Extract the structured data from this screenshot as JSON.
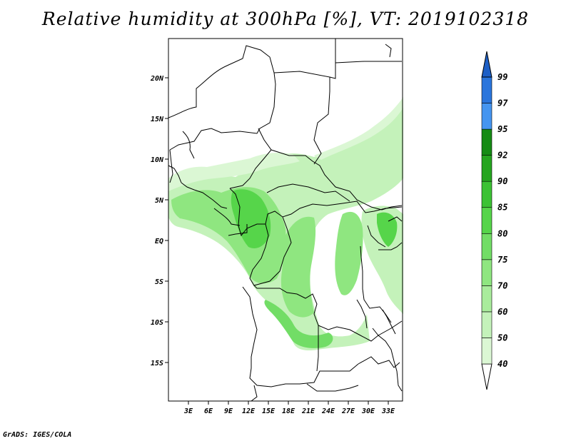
{
  "title": "Relative humidity at 300hPa [%], VT: 2019102318",
  "credit": "GrADS: IGES/COLA",
  "map": {
    "lat_labels": [
      "20N",
      "15N",
      "10N",
      "5N",
      "EQ",
      "5S",
      "10S",
      "15S"
    ],
    "lon_labels": [
      "3E",
      "6E",
      "9E",
      "12E",
      "15E",
      "18E",
      "21E",
      "24E",
      "27E",
      "30E",
      "33E"
    ]
  },
  "colorbar": {
    "levels": [
      "40",
      "50",
      "60",
      "70",
      "75",
      "80",
      "85",
      "90",
      "92",
      "95",
      "97",
      "99"
    ],
    "colors": [
      "#ebfbe8",
      "#dbf7d4",
      "#c4f2ba",
      "#a9ec9c",
      "#8fe680",
      "#72dd66",
      "#56d54a",
      "#3cc234",
      "#25a51f",
      "#158b14",
      "#4595f0",
      "#2a75dc",
      "#1d5fc6"
    ]
  },
  "fill_colors": {
    "light": "#ebfbe8",
    "l2": "#c4f2ba",
    "l3": "#8fe680",
    "l4": "#56d54a"
  }
}
